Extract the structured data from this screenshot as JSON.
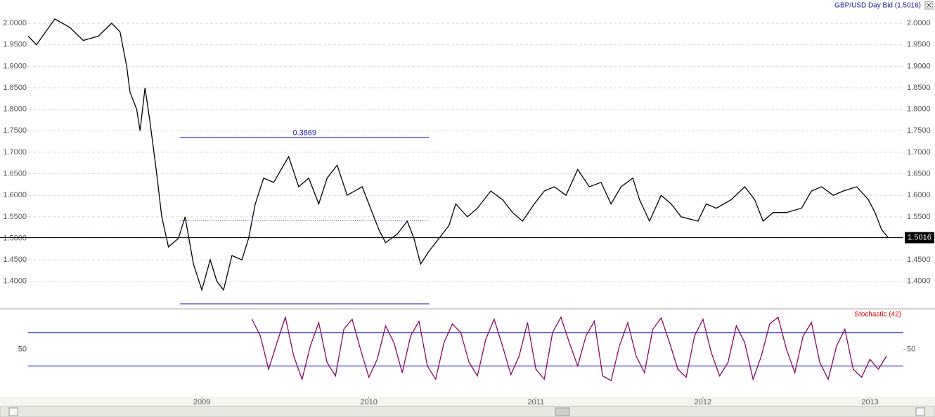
{
  "chart_data": [
    {
      "type": "line",
      "title": "GBP/USD Day Bid (1.5016)",
      "xlim": [
        2007.96,
        2013.2
      ],
      "ylim": [
        1.336,
        2.054
      ],
      "yticks": [
        {
          "value": 1.4,
          "label": "1.4000"
        },
        {
          "value": 1.45,
          "label": "1.4500"
        },
        {
          "value": 1.5,
          "label": "1.5000"
        },
        {
          "value": 1.55,
          "label": "1.5500"
        },
        {
          "value": 1.6,
          "label": "1.6000"
        },
        {
          "value": 1.65,
          "label": "1.6500"
        },
        {
          "value": 1.7,
          "label": "1.7000"
        },
        {
          "value": 1.75,
          "label": "1.7500"
        },
        {
          "value": 1.8,
          "label": "1.8000"
        },
        {
          "value": 1.85,
          "label": "1.8500"
        },
        {
          "value": 1.9,
          "label": "1.9000"
        },
        {
          "value": 1.95,
          "label": "1.9500"
        },
        {
          "value": 2.0,
          "label": "2.0000"
        }
      ],
      "grid": true,
      "grid_color": "#ddd8c0",
      "x": [
        2007.96,
        2008.01,
        2008.12,
        2008.21,
        2008.29,
        2008.38,
        2008.46,
        2008.51,
        2008.55,
        2008.57,
        2008.61,
        2008.63,
        2008.66,
        2008.69,
        2008.73,
        2008.76,
        2008.8,
        2008.86,
        2008.9,
        2008.95,
        2009.0,
        2009.05,
        2009.09,
        2009.13,
        2009.18,
        2009.24,
        2009.28,
        2009.32,
        2009.37,
        2009.43,
        2009.52,
        2009.58,
        2009.64,
        2009.7,
        2009.75,
        2009.81,
        2009.87,
        2009.96,
        2010.02,
        2010.06,
        2010.1,
        2010.17,
        2010.23,
        2010.27,
        2010.31,
        2010.36,
        2010.42,
        2010.48,
        2010.52,
        2010.59,
        2010.65,
        2010.73,
        2010.8,
        2010.86,
        2010.92,
        2010.99,
        2011.05,
        2011.11,
        2011.18,
        2011.25,
        2011.32,
        2011.39,
        2011.45,
        2011.51,
        2011.58,
        2011.62,
        2011.68,
        2011.75,
        2011.81,
        2011.87,
        2011.97,
        2012.02,
        2012.08,
        2012.17,
        2012.25,
        2012.31,
        2012.36,
        2012.42,
        2012.5,
        2012.59,
        2012.65,
        2012.71,
        2012.78,
        2012.84,
        2012.92,
        2012.99,
        2013.03,
        2013.07,
        2013.11
      ],
      "series": [
        {
          "color": "#000000",
          "values": [
            1.97,
            1.95,
            2.01,
            1.99,
            1.96,
            1.97,
            2.0,
            1.98,
            1.9,
            1.84,
            1.8,
            1.75,
            1.85,
            1.77,
            1.65,
            1.55,
            1.48,
            1.5,
            1.55,
            1.44,
            1.38,
            1.45,
            1.4,
            1.38,
            1.46,
            1.45,
            1.5,
            1.58,
            1.64,
            1.63,
            1.69,
            1.62,
            1.64,
            1.58,
            1.64,
            1.67,
            1.6,
            1.62,
            1.56,
            1.52,
            1.49,
            1.51,
            1.54,
            1.5,
            1.44,
            1.47,
            1.5,
            1.53,
            1.58,
            1.55,
            1.57,
            1.61,
            1.59,
            1.56,
            1.54,
            1.58,
            1.61,
            1.62,
            1.6,
            1.66,
            1.62,
            1.63,
            1.58,
            1.62,
            1.64,
            1.59,
            1.54,
            1.6,
            1.58,
            1.55,
            1.54,
            1.58,
            1.57,
            1.59,
            1.62,
            1.59,
            1.54,
            1.56,
            1.56,
            1.57,
            1.61,
            1.62,
            1.6,
            1.61,
            1.62,
            1.59,
            1.56,
            1.52,
            1.5016
          ]
        }
      ],
      "last": {
        "value": 1.5016,
        "label": "1.5016"
      },
      "annotation": {
        "label": "0.3869",
        "high": 1.7346,
        "low": 1.3477,
        "mid": 1.5412,
        "x": [
          2008.87,
          2010.36
        ],
        "color": "#2020c0"
      }
    },
    {
      "type": "line",
      "xlim": [
        2007.96,
        2013.2
      ],
      "ylim": [
        -21,
        110.5
      ],
      "yticks": [
        50
      ],
      "levels": [
        25,
        75
      ],
      "level_color": "#2020c0",
      "xticks": [
        2009,
        2010,
        2011,
        2012,
        2013
      ],
      "x": [
        2009.3,
        2009.35,
        2009.4,
        2009.45,
        2009.5,
        2009.55,
        2009.6,
        2009.65,
        2009.7,
        2009.75,
        2009.8,
        2009.85,
        2009.9,
        2009.95,
        2010.0,
        2010.05,
        2010.1,
        2010.15,
        2010.2,
        2010.25,
        2010.3,
        2010.35,
        2010.4,
        2010.45,
        2010.5,
        2010.55,
        2010.6,
        2010.65,
        2010.7,
        2010.75,
        2010.8,
        2010.85,
        2010.9,
        2010.95,
        2011.0,
        2011.05,
        2011.1,
        2011.15,
        2011.2,
        2011.25,
        2011.3,
        2011.35,
        2011.4,
        2011.45,
        2011.5,
        2011.55,
        2011.6,
        2011.65,
        2011.7,
        2011.75,
        2011.8,
        2011.85,
        2011.9,
        2011.95,
        2012.0,
        2012.05,
        2012.1,
        2012.15,
        2012.2,
        2012.25,
        2012.3,
        2012.35,
        2012.4,
        2012.45,
        2012.5,
        2012.55,
        2012.6,
        2012.65,
        2012.7,
        2012.75,
        2012.8,
        2012.85,
        2012.9,
        2012.95,
        2013.0,
        2013.05,
        2013.1
      ],
      "series": [
        {
          "name": "Stochastic (42)",
          "color": "#e00000",
          "dash_color": "#2020d0",
          "values": [
            95,
            70,
            20,
            60,
            98,
            40,
            5,
            55,
            90,
            30,
            10,
            80,
            95,
            50,
            8,
            35,
            85,
            60,
            15,
            70,
            92,
            25,
            5,
            60,
            88,
            75,
            30,
            10,
            65,
            95,
            55,
            12,
            40,
            90,
            20,
            5,
            75,
            98,
            60,
            25,
            70,
            92,
            10,
            3,
            55,
            90,
            40,
            15,
            80,
            97,
            60,
            20,
            8,
            70,
            95,
            45,
            10,
            30,
            85,
            60,
            5,
            40,
            88,
            98,
            50,
            15,
            70,
            90,
            30,
            5,
            55,
            80,
            20,
            8,
            35,
            20,
            40
          ]
        }
      ]
    }
  ]
}
